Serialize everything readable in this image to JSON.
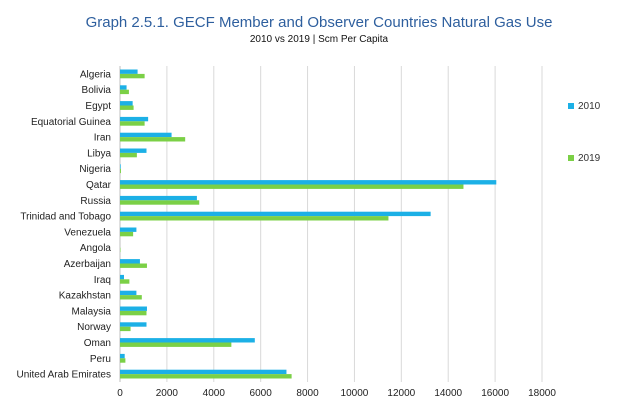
{
  "chart_data": {
    "type": "bar",
    "orientation": "horizontal",
    "title": "Graph 2.5.1. GECF Member and Observer Countries Natural Gas Use",
    "subtitle": "2010 vs 2019 | Scm Per Capita",
    "xlabel": "",
    "ylabel": "",
    "xlim": [
      0,
      18000
    ],
    "xticks": [
      0,
      2000,
      4000,
      6000,
      8000,
      10000,
      12000,
      14000,
      16000,
      18000
    ],
    "grid": true,
    "legend_position": "right",
    "categories": [
      "Algeria",
      "Bolivia",
      "Egypt",
      "Equatorial Guinea",
      "Iran",
      "Libya",
      "Nigeria",
      "Qatar",
      "Russia",
      "Trinidad and Tobago",
      "Venezuela",
      "Angola",
      "Azerbaijan",
      "Iraq",
      "Kazakhstan",
      "Malaysia",
      "Norway",
      "Oman",
      "Peru",
      "United Arab Emirates"
    ],
    "series": [
      {
        "name": "2010",
        "color": "#1cb0e6",
        "values": [
          750,
          280,
          540,
          1200,
          2200,
          1130,
          30,
          16050,
          3280,
          13250,
          700,
          0,
          850,
          170,
          700,
          1150,
          1130,
          5750,
          200,
          7100
        ]
      },
      {
        "name": "2019",
        "color": "#7bd046",
        "values": [
          1050,
          380,
          580,
          1050,
          2780,
          720,
          40,
          14650,
          3380,
          11450,
          560,
          20,
          1150,
          400,
          930,
          1130,
          450,
          4750,
          230,
          7320
        ]
      }
    ]
  }
}
